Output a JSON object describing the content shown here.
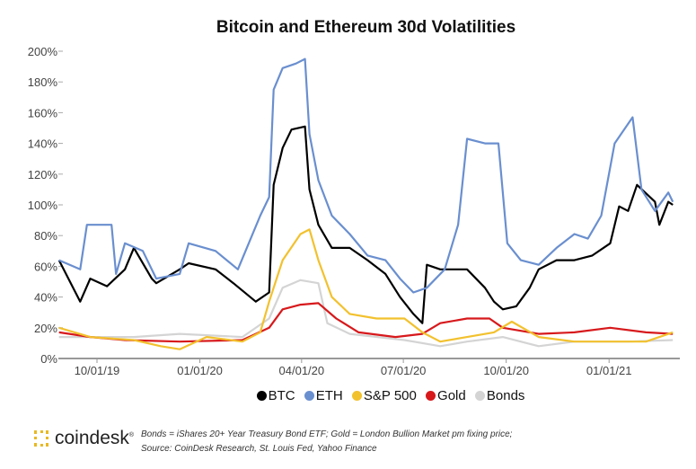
{
  "chart_data": {
    "type": "line",
    "title": "Bitcoin and Ethereum 30d Volatilities",
    "xlabel": "",
    "ylabel": "",
    "ylim": [
      0,
      200
    ],
    "xlim": [
      "2019-08-25",
      "2021-03-05"
    ],
    "y_ticks": [
      "0%",
      "20%",
      "40%",
      "60%",
      "80%",
      "100%",
      "120%",
      "140%",
      "160%",
      "180%",
      "200%"
    ],
    "x_ticks": [
      {
        "date": "2019-10-01",
        "label": "10/01/19"
      },
      {
        "date": "2020-01-01",
        "label": "01/01/20"
      },
      {
        "date": "2020-04-01",
        "label": "04/01/20"
      },
      {
        "date": "2020-07-01",
        "label": "07/01/20"
      },
      {
        "date": "2020-10-01",
        "label": "10/01/20"
      },
      {
        "date": "2021-01-01",
        "label": "01/01/21"
      }
    ],
    "grid": false,
    "legend_position": "bottom",
    "series": [
      {
        "name": "Bonds",
        "color": "#d4d4d4",
        "points": [
          [
            "2019-08-28",
            14
          ],
          [
            "2019-11-03",
            14
          ],
          [
            "2019-12-14",
            16
          ],
          [
            "2020-02-08",
            14
          ],
          [
            "2020-03-03",
            26
          ],
          [
            "2020-03-15",
            46
          ],
          [
            "2020-03-31",
            51
          ],
          [
            "2020-04-16",
            49
          ],
          [
            "2020-04-24",
            23
          ],
          [
            "2020-05-14",
            16
          ],
          [
            "2020-07-02",
            12
          ],
          [
            "2020-08-03",
            8
          ],
          [
            "2020-08-27",
            11
          ],
          [
            "2020-09-28",
            14
          ],
          [
            "2020-10-30",
            8
          ],
          [
            "2020-12-01",
            11
          ],
          [
            "2021-01-18",
            11
          ],
          [
            "2021-02-27",
            12
          ]
        ]
      },
      {
        "name": "Gold",
        "color": "#d7191c",
        "points": [
          [
            "2019-08-28",
            17
          ],
          [
            "2019-09-25",
            14
          ],
          [
            "2019-10-26",
            12
          ],
          [
            "2019-12-14",
            11
          ],
          [
            "2020-02-08",
            12
          ],
          [
            "2020-03-03",
            20
          ],
          [
            "2020-03-15",
            32
          ],
          [
            "2020-03-31",
            35
          ],
          [
            "2020-04-16",
            36
          ],
          [
            "2020-05-02",
            26
          ],
          [
            "2020-05-22",
            17
          ],
          [
            "2020-06-24",
            14
          ],
          [
            "2020-07-18",
            16
          ],
          [
            "2020-08-03",
            23
          ],
          [
            "2020-08-27",
            26
          ],
          [
            "2020-09-16",
            26
          ],
          [
            "2020-09-28",
            20
          ],
          [
            "2020-10-30",
            16
          ],
          [
            "2020-12-01",
            17
          ],
          [
            "2021-01-02",
            20
          ],
          [
            "2021-02-03",
            17
          ],
          [
            "2021-02-27",
            16
          ]
        ]
      },
      {
        "name": "S&P 500",
        "color": "#f2c12e",
        "points": [
          [
            "2019-08-28",
            20
          ],
          [
            "2019-09-25",
            14
          ],
          [
            "2019-11-03",
            12
          ],
          [
            "2019-11-27",
            8
          ],
          [
            "2019-12-14",
            6
          ],
          [
            "2020-01-07",
            14
          ],
          [
            "2020-02-08",
            11
          ],
          [
            "2020-02-24",
            17
          ],
          [
            "2020-03-03",
            37
          ],
          [
            "2020-03-15",
            64
          ],
          [
            "2020-03-31",
            81
          ],
          [
            "2020-04-08",
            84
          ],
          [
            "2020-04-16",
            64
          ],
          [
            "2020-04-28",
            40
          ],
          [
            "2020-05-14",
            29
          ],
          [
            "2020-06-07",
            26
          ],
          [
            "2020-07-02",
            26
          ],
          [
            "2020-07-18",
            17
          ],
          [
            "2020-08-03",
            11
          ],
          [
            "2020-08-27",
            14
          ],
          [
            "2020-09-20",
            17
          ],
          [
            "2020-10-06",
            24
          ],
          [
            "2020-10-30",
            14
          ],
          [
            "2020-12-01",
            11
          ],
          [
            "2021-01-02",
            11
          ],
          [
            "2021-02-03",
            11
          ],
          [
            "2021-02-27",
            17
          ]
        ]
      },
      {
        "name": "BTC",
        "color": "#000000",
        "points": [
          [
            "2019-08-28",
            64
          ],
          [
            "2019-09-16",
            37
          ],
          [
            "2019-09-25",
            52
          ],
          [
            "2019-10-10",
            47
          ],
          [
            "2019-10-26",
            58
          ],
          [
            "2019-11-03",
            72
          ],
          [
            "2019-11-19",
            52
          ],
          [
            "2019-11-23",
            49
          ],
          [
            "2019-12-14",
            58
          ],
          [
            "2019-12-22",
            62
          ],
          [
            "2020-01-15",
            58
          ],
          [
            "2020-01-31",
            49
          ],
          [
            "2020-02-20",
            37
          ],
          [
            "2020-03-03",
            43
          ],
          [
            "2020-03-07",
            113
          ],
          [
            "2020-03-15",
            137
          ],
          [
            "2020-03-23",
            149
          ],
          [
            "2020-04-04",
            151
          ],
          [
            "2020-04-08",
            110
          ],
          [
            "2020-04-16",
            87
          ],
          [
            "2020-04-28",
            72
          ],
          [
            "2020-05-14",
            72
          ],
          [
            "2020-05-30",
            64
          ],
          [
            "2020-06-15",
            55
          ],
          [
            "2020-06-28",
            40
          ],
          [
            "2020-07-10",
            29
          ],
          [
            "2020-07-18",
            23
          ],
          [
            "2020-07-22",
            61
          ],
          [
            "2020-08-03",
            58
          ],
          [
            "2020-08-27",
            58
          ],
          [
            "2020-09-12",
            46
          ],
          [
            "2020-09-20",
            37
          ],
          [
            "2020-09-28",
            32
          ],
          [
            "2020-10-10",
            34
          ],
          [
            "2020-10-22",
            46
          ],
          [
            "2020-10-30",
            58
          ],
          [
            "2020-11-15",
            64
          ],
          [
            "2020-12-01",
            64
          ],
          [
            "2020-12-17",
            67
          ],
          [
            "2021-01-02",
            75
          ],
          [
            "2021-01-10",
            99
          ],
          [
            "2021-01-18",
            96
          ],
          [
            "2021-01-26",
            113
          ],
          [
            "2021-02-11",
            102
          ],
          [
            "2021-02-15",
            87
          ],
          [
            "2021-02-23",
            102
          ],
          [
            "2021-02-27",
            100
          ]
        ]
      },
      {
        "name": "ETH",
        "color": "#6a8fcf",
        "points": [
          [
            "2019-08-28",
            64
          ],
          [
            "2019-09-16",
            58
          ],
          [
            "2019-09-22",
            87
          ],
          [
            "2019-10-14",
            87
          ],
          [
            "2019-10-18",
            55
          ],
          [
            "2019-10-26",
            75
          ],
          [
            "2019-11-11",
            70
          ],
          [
            "2019-11-23",
            52
          ],
          [
            "2019-12-14",
            55
          ],
          [
            "2019-12-22",
            75
          ],
          [
            "2020-01-15",
            70
          ],
          [
            "2020-02-04",
            58
          ],
          [
            "2020-02-24",
            93
          ],
          [
            "2020-03-03",
            105
          ],
          [
            "2020-03-07",
            175
          ],
          [
            "2020-03-15",
            189
          ],
          [
            "2020-03-27",
            192
          ],
          [
            "2020-04-04",
            195
          ],
          [
            "2020-04-08",
            146
          ],
          [
            "2020-04-16",
            116
          ],
          [
            "2020-04-28",
            93
          ],
          [
            "2020-05-14",
            81
          ],
          [
            "2020-05-30",
            67
          ],
          [
            "2020-06-15",
            64
          ],
          [
            "2020-06-28",
            52
          ],
          [
            "2020-07-10",
            43
          ],
          [
            "2020-07-22",
            46
          ],
          [
            "2020-08-07",
            58
          ],
          [
            "2020-08-19",
            87
          ],
          [
            "2020-08-27",
            143
          ],
          [
            "2020-09-12",
            140
          ],
          [
            "2020-09-24",
            140
          ],
          [
            "2020-10-02",
            75
          ],
          [
            "2020-10-14",
            64
          ],
          [
            "2020-10-30",
            61
          ],
          [
            "2020-11-15",
            72
          ],
          [
            "2020-12-01",
            81
          ],
          [
            "2020-12-13",
            78
          ],
          [
            "2020-12-25",
            93
          ],
          [
            "2021-01-06",
            140
          ],
          [
            "2021-01-22",
            157
          ],
          [
            "2021-01-30",
            110
          ],
          [
            "2021-02-11",
            96
          ],
          [
            "2021-02-23",
            108
          ],
          [
            "2021-02-27",
            102
          ]
        ]
      }
    ]
  },
  "legend": [
    {
      "label": "BTC",
      "color": "#000000"
    },
    {
      "label": "ETH",
      "color": "#6a8fcf"
    },
    {
      "label": "S&P 500",
      "color": "#f2c12e"
    },
    {
      "label": "Gold",
      "color": "#d7191c"
    },
    {
      "label": "Bonds",
      "color": "#d4d4d4"
    }
  ],
  "logo": "coindesk",
  "notes": {
    "line1": "Bonds = iShares 20+ Year Treasury Bond ETF;   Gold = London Bullion Market pm fixing price;",
    "line2": "Source: CoinDesk Research, St. Louis Fed, Yahoo Finance"
  }
}
